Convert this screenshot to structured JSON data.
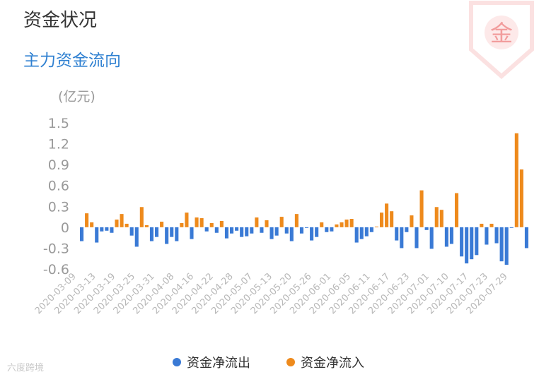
{
  "header": {
    "title": "资金状况",
    "subtitle": "主力资金流向",
    "unit": "(亿元)",
    "badge_char": "金"
  },
  "watermark": "六度跨境",
  "colors": {
    "inflow": "#ee8a1c",
    "outflow": "#3a7ad5",
    "title": "#333333",
    "subtitle": "#2f80d1",
    "axis_text": "#9a9a9a"
  },
  "legend": [
    {
      "label": "资金净流出",
      "color": "#3a7ad5"
    },
    {
      "label": "资金净流入",
      "color": "#ee8a1c"
    }
  ],
  "chart_data": {
    "type": "bar",
    "title": "主力资金流向",
    "ylabel": "(亿元)",
    "ylim": [
      -0.6,
      1.5
    ],
    "yticks": [
      "1.5",
      "1.2",
      "0.9",
      "0.6",
      "0.3",
      "0",
      "-0.3",
      "-0.6"
    ],
    "xtick_labels": [
      "2020-03-09",
      "2020-03-13",
      "2020-03-19",
      "2020-03-25",
      "2020-03-31",
      "2020-04-08",
      "2020-04-16",
      "2020-04-22",
      "2020-04-28",
      "2020-05-07",
      "2020-05-13",
      "2020-05-20",
      "2020-05-26",
      "2020-06-01",
      "2020-06-05",
      "2020-06-11",
      "2020-06-17",
      "2020-06-23",
      "2020-07-01",
      "2020-07-10",
      "2020-07-17",
      "2020-07-23",
      "2020-07-29"
    ],
    "values": [
      -0.2,
      0.2,
      0.07,
      -0.22,
      -0.06,
      -0.05,
      -0.08,
      0.11,
      0.19,
      0.05,
      -0.12,
      -0.28,
      0.29,
      0.03,
      -0.2,
      -0.14,
      0.08,
      -0.24,
      -0.14,
      -0.2,
      0.06,
      0.21,
      -0.17,
      0.14,
      0.13,
      -0.06,
      0.06,
      -0.08,
      0.09,
      -0.16,
      -0.09,
      -0.05,
      -0.14,
      -0.13,
      -0.09,
      0.14,
      -0.08,
      0.1,
      -0.17,
      -0.12,
      0.15,
      -0.09,
      -0.2,
      0.19,
      -0.09,
      -0.01,
      -0.19,
      -0.14,
      0.07,
      -0.07,
      -0.06,
      0.04,
      0.07,
      0.11,
      0.12,
      -0.22,
      -0.17,
      -0.13,
      -0.07,
      0.01,
      0.21,
      0.34,
      0.23,
      -0.19,
      -0.3,
      -0.07,
      0.17,
      -0.3,
      0.53,
      -0.04,
      -0.31,
      0.29,
      0.25,
      -0.28,
      -0.24,
      0.49,
      -0.42,
      -0.52,
      -0.46,
      -0.4,
      0.05,
      -0.25,
      0.05,
      -0.23,
      -0.49,
      -0.54,
      -0.01,
      1.35,
      0.83,
      -0.3
    ]
  }
}
